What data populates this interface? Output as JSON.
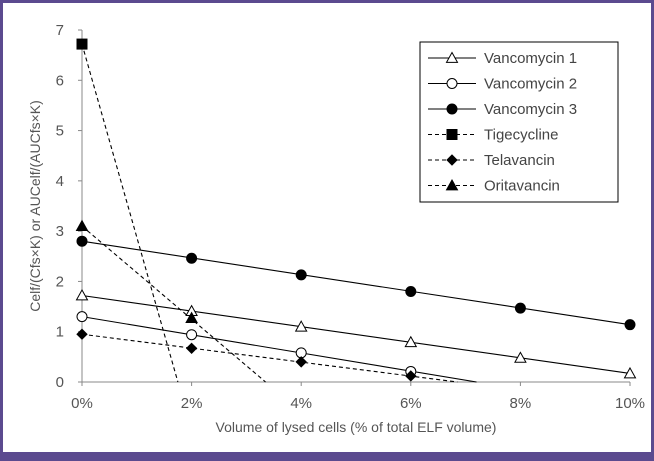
{
  "chart_data": {
    "type": "line",
    "title": "",
    "xlabel": "Volume of lysed cells (% of total ELF volume)",
    "ylabel": "Celf/(Cfs×K) or AUCelf/(AUCfs×K)",
    "xlim": [
      0,
      10
    ],
    "ylim": [
      0,
      7
    ],
    "x_ticks": [
      0,
      2,
      4,
      6,
      8,
      10
    ],
    "x_tick_labels": [
      "0%",
      "2%",
      "4%",
      "6%",
      "8%",
      "10%"
    ],
    "y_ticks": [
      0,
      1,
      2,
      3,
      4,
      5,
      6,
      7
    ],
    "y_tick_labels": [
      "0",
      "1",
      "2",
      "3",
      "4",
      "5",
      "6",
      "7"
    ],
    "legend_position": "top-right",
    "grid": false,
    "series": [
      {
        "name": "Vancomycin 1",
        "line": "solid",
        "marker": "triangle-open",
        "x": [
          0,
          2,
          4,
          6,
          8,
          10
        ],
        "y": [
          1.72,
          1.41,
          1.1,
          0.79,
          0.48,
          0.17
        ],
        "line_x": [
          0,
          10
        ],
        "line_y": [
          1.72,
          0.17
        ]
      },
      {
        "name": "Vancomycin 2",
        "line": "solid",
        "marker": "circle-open",
        "x": [
          0,
          2,
          4,
          6
        ],
        "y": [
          1.3,
          0.94,
          0.58,
          0.21
        ],
        "line_x": [
          0,
          7.2
        ],
        "line_y": [
          1.3,
          0
        ]
      },
      {
        "name": "Vancomycin 3",
        "line": "solid",
        "marker": "circle-filled",
        "x": [
          0,
          2,
          4,
          6,
          8,
          10
        ],
        "y": [
          2.8,
          2.46,
          2.13,
          1.8,
          1.47,
          1.14
        ],
        "line_x": [
          0,
          10
        ],
        "line_y": [
          2.8,
          1.14
        ]
      },
      {
        "name": "Tigecycline",
        "line": "dashed",
        "marker": "square-filled",
        "x": [
          0
        ],
        "y": [
          6.72
        ],
        "line_x": [
          0,
          1.75
        ],
        "line_y": [
          6.72,
          0
        ]
      },
      {
        "name": "Telavancin",
        "line": "dashed",
        "marker": "diamond-filled",
        "x": [
          0,
          2,
          4,
          6
        ],
        "y": [
          0.95,
          0.67,
          0.4,
          0.12
        ],
        "line_x": [
          0,
          6.85
        ],
        "line_y": [
          0.95,
          0
        ]
      },
      {
        "name": "Oritavancin",
        "line": "dashed",
        "marker": "triangle-filled",
        "x": [
          0,
          2
        ],
        "y": [
          3.1,
          1.27
        ],
        "line_x": [
          0,
          3.35
        ],
        "line_y": [
          3.1,
          0
        ]
      }
    ]
  }
}
